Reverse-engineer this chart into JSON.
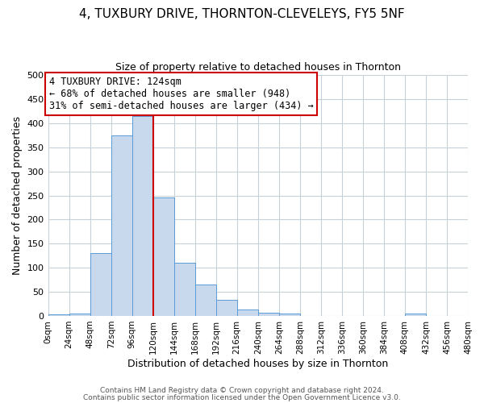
{
  "title": "4, TUXBURY DRIVE, THORNTON-CLEVELEYS, FY5 5NF",
  "subtitle": "Size of property relative to detached houses in Thornton",
  "xlabel": "Distribution of detached houses by size in Thornton",
  "ylabel": "Number of detached properties",
  "bar_edges": [
    0,
    24,
    48,
    72,
    96,
    120,
    144,
    168,
    192,
    216,
    240,
    264,
    288,
    312,
    336,
    360,
    384,
    408,
    432,
    456,
    480
  ],
  "bar_heights": [
    4,
    5,
    130,
    375,
    415,
    245,
    110,
    65,
    33,
    14,
    7,
    5,
    0,
    0,
    0,
    0,
    0,
    5,
    0,
    0
  ],
  "bar_color": "#c8d9ee",
  "bar_edge_color": "#5b9bd5",
  "vline_x": 120,
  "vline_color": "#cc0000",
  "ylim": [
    0,
    500
  ],
  "yticks": [
    0,
    50,
    100,
    150,
    200,
    250,
    300,
    350,
    400,
    450,
    500
  ],
  "annotation_title": "4 TUXBURY DRIVE: 124sqm",
  "annotation_line1": "← 68% of detached houses are smaller (948)",
  "annotation_line2": "31% of semi-detached houses are larger (434) →",
  "annotation_box_color": "#cc0000",
  "footer_line1": "Contains HM Land Registry data © Crown copyright and database right 2024.",
  "footer_line2": "Contains public sector information licensed under the Open Government Licence v3.0.",
  "background_color": "#ffffff",
  "grid_color": "#c8d0d8"
}
